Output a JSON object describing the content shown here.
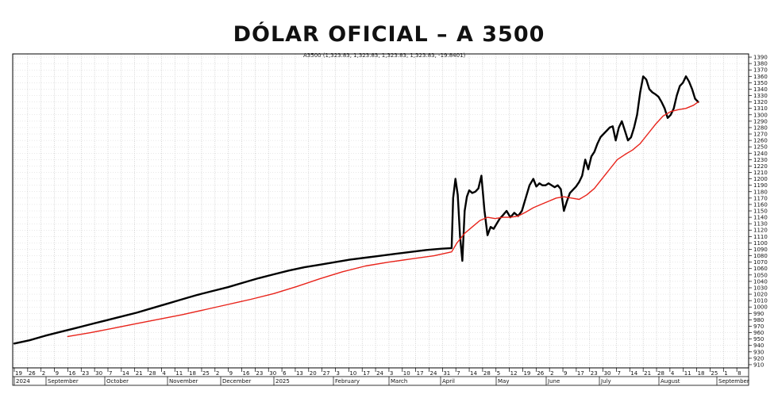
{
  "chart_data": {
    "type": "line",
    "title": "DÓLAR OFICIAL – A 3500",
    "legend": "A3500 (1,323.83, 1,323.83, 1,323.83, 1,323.83, -19.8401)",
    "ylim": [
      905,
      1395
    ],
    "y_ticks": [
      910,
      920,
      930,
      940,
      950,
      960,
      970,
      980,
      990,
      1000,
      1010,
      1020,
      1030,
      1040,
      1050,
      1060,
      1070,
      1080,
      1090,
      1100,
      1110,
      1120,
      1130,
      1140,
      1150,
      1160,
      1170,
      1180,
      1190,
      1200,
      1210,
      1220,
      1230,
      1240,
      1250,
      1260,
      1270,
      1280,
      1290,
      1300,
      1310,
      1320,
      1330,
      1340,
      1350,
      1360,
      1370,
      1380,
      1390
    ],
    "x_day_ticks": [
      "19",
      "26",
      "2",
      "9",
      "16",
      "23",
      "30",
      "7",
      "14",
      "21",
      "28",
      "4",
      "11",
      "18",
      "25",
      "2",
      "9",
      "16",
      "23",
      "30",
      "6",
      "13",
      "20",
      "27",
      "3",
      "10",
      "17",
      "24",
      "3",
      "10",
      "17",
      "24",
      "31",
      "7",
      "14",
      "28",
      "5",
      "12",
      "19",
      "26",
      "2",
      "9",
      "17",
      "23",
      "30",
      "7",
      "14",
      "21",
      "28",
      "4",
      "11",
      "18",
      "25",
      "1",
      "8"
    ],
    "x_month_labels": [
      "2024",
      "September",
      "October",
      "November",
      "December",
      "2025",
      "February",
      "March",
      "April",
      "May",
      "June",
      "July",
      "August",
      "September"
    ],
    "grid": true,
    "series": [
      {
        "color": "#000000",
        "x": [
          0,
          20,
          40,
          60,
          80,
          100,
          120,
          140,
          160,
          180,
          200,
          220,
          240,
          260,
          280,
          300,
          320,
          340,
          360,
          380,
          400,
          420,
          440,
          460,
          480,
          500,
          520,
          540,
          560,
          573,
          575,
          578,
          581,
          584,
          587,
          590,
          593,
          596,
          600,
          604,
          608,
          612,
          616,
          620,
          624,
          628,
          632,
          636,
          640,
          645,
          650,
          655,
          660,
          665,
          670,
          675,
          680,
          684,
          688,
          692,
          696,
          700,
          704,
          708,
          712,
          716,
          720,
          724,
          728,
          732,
          736,
          740,
          744,
          748,
          752,
          756,
          760,
          764,
          768,
          772,
          776,
          780,
          784,
          788,
          792,
          796,
          800,
          804,
          808,
          812,
          816,
          820,
          824,
          828,
          832,
          836,
          840,
          844,
          848,
          852,
          856,
          860,
          864,
          868,
          872,
          876,
          880,
          884,
          888,
          892,
          896
        ],
        "y": [
          943,
          948,
          955,
          961,
          967,
          973,
          979,
          985,
          991,
          998,
          1005,
          1012,
          1019,
          1025,
          1031,
          1038,
          1045,
          1051,
          1057,
          1062,
          1066,
          1070,
          1074,
          1077,
          1080,
          1083,
          1086,
          1089,
          1091,
          1092,
          1170,
          1200,
          1175,
          1110,
          1072,
          1150,
          1172,
          1182,
          1178,
          1180,
          1185,
          1205,
          1150,
          1112,
          1125,
          1122,
          1130,
          1138,
          1143,
          1150,
          1140,
          1147,
          1142,
          1150,
          1170,
          1190,
          1200,
          1188,
          1193,
          1190,
          1190,
          1193,
          1190,
          1187,
          1190,
          1184,
          1150,
          1165,
          1178,
          1183,
          1188,
          1195,
          1205,
          1230,
          1215,
          1235,
          1242,
          1255,
          1265,
          1270,
          1275,
          1280,
          1282,
          1260,
          1280,
          1290,
          1275,
          1260,
          1265,
          1280,
          1300,
          1335,
          1360,
          1355,
          1340,
          1335,
          1332,
          1328,
          1320,
          1310,
          1295,
          1300,
          1310,
          1330,
          1345,
          1350,
          1360,
          1352,
          1340,
          1325,
          1320
        ]
      },
      {
        "color": "#e8231a",
        "x": [
          70,
          100,
          130,
          160,
          190,
          220,
          250,
          280,
          310,
          340,
          370,
          400,
          430,
          460,
          490,
          520,
          550,
          573,
          580,
          590,
          600,
          610,
          620,
          630,
          640,
          650,
          660,
          670,
          680,
          690,
          700,
          710,
          720,
          730,
          740,
          750,
          760,
          770,
          780,
          790,
          800,
          810,
          820,
          830,
          840,
          850,
          860,
          870,
          880,
          890,
          896
        ],
        "y": [
          954,
          960,
          967,
          974,
          981,
          988,
          996,
          1004,
          1012,
          1021,
          1032,
          1044,
          1055,
          1064,
          1070,
          1075,
          1080,
          1086,
          1100,
          1115,
          1125,
          1135,
          1140,
          1138,
          1140,
          1140,
          1142,
          1148,
          1155,
          1160,
          1165,
          1170,
          1172,
          1170,
          1168,
          1175,
          1185,
          1200,
          1215,
          1230,
          1238,
          1245,
          1255,
          1270,
          1285,
          1298,
          1305,
          1308,
          1310,
          1315,
          1320
        ]
      }
    ]
  }
}
